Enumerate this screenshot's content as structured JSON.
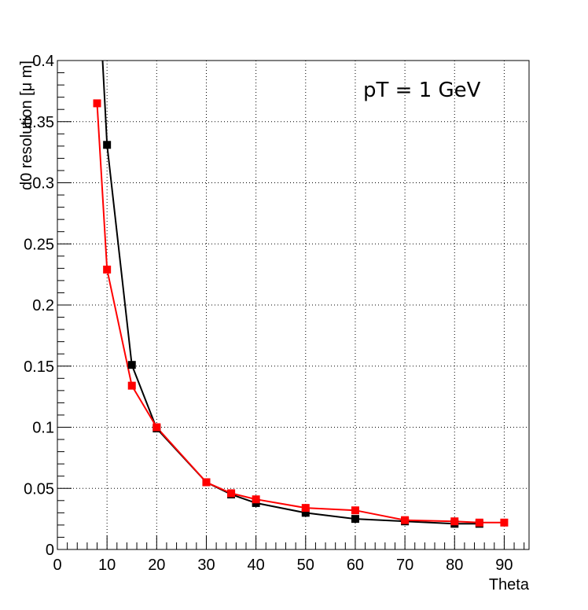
{
  "chart_data": {
    "type": "line",
    "title": "",
    "xlabel": "Theta",
    "ylabel": "d0 resolution [μ m]",
    "xlim": [
      0,
      95
    ],
    "ylim": [
      0,
      0.4
    ],
    "x_ticks": [
      0,
      10,
      20,
      30,
      40,
      50,
      60,
      70,
      80,
      90
    ],
    "y_ticks": [
      0,
      0.05,
      0.1,
      0.15,
      0.2,
      0.25,
      0.3,
      0.35,
      0.4
    ],
    "y_tick_labels": [
      "0",
      "0.05",
      "0.1",
      "0.15",
      "0.2",
      "0.25",
      "0.3",
      "0.35",
      "0.4"
    ],
    "grid": true,
    "annotation": "pT = 1 GeV",
    "series": [
      {
        "color": "#000000",
        "marker": "square",
        "x": [
          10,
          15,
          20,
          30,
          35,
          40,
          50,
          60,
          70,
          80,
          85
        ],
        "y": [
          0.331,
          0.151,
          0.099,
          0.055,
          0.045,
          0.038,
          0.03,
          0.025,
          0.023,
          0.021,
          0.021
        ],
        "line_start": {
          "x": 9.1,
          "y": 0.4
        }
      },
      {
        "color": "#ff0000",
        "marker": "square",
        "x": [
          8,
          10,
          15,
          20,
          30,
          35,
          40,
          50,
          60,
          70,
          80,
          85,
          90
        ],
        "y": [
          0.365,
          0.229,
          0.134,
          0.1,
          0.055,
          0.046,
          0.041,
          0.034,
          0.032,
          0.024,
          0.023,
          0.022,
          0.022
        ]
      }
    ]
  }
}
